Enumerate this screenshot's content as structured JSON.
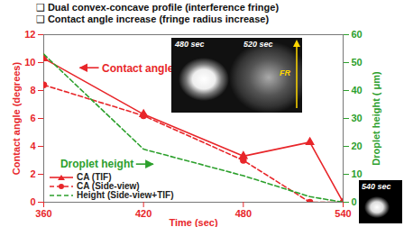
{
  "chart_data": {
    "type": "line",
    "title": "❑ Dual convex-concave profile (interference fringe)",
    "subtitle": "❑ Contact angle increase (fringe radius increase)",
    "x": [
      360,
      420,
      480,
      520,
      540
    ],
    "xlabel": "Time (sec)",
    "ylabel": "Contact angle (degrees)",
    "y2label": "Droplet height ( μm)",
    "xlim": [
      360,
      540
    ],
    "xticks": [
      360,
      420,
      480,
      540
    ],
    "ylim": [
      0,
      12
    ],
    "yticks": [
      0,
      2,
      4,
      6,
      8,
      10,
      12
    ],
    "y2lim": [
      0,
      60
    ],
    "y2ticks": [
      0,
      10,
      20,
      30,
      40,
      50,
      60
    ],
    "legend": "lower left",
    "series": [
      {
        "name": "CA (TIF)",
        "color": "#e8262a",
        "marker": "triangle",
        "line_style": "solid",
        "values": [
          10.3,
          6.3,
          3.3,
          4.3,
          0
        ]
      },
      {
        "name": "CA (Side-view)",
        "color": "#e8262a",
        "marker": "circle",
        "line_style": "dashed",
        "values": [
          8.4,
          6.2,
          3.0,
          0,
          0
        ]
      },
      {
        "name": "Height (Side-view+TIF)",
        "color": "#2ca02c",
        "marker": "none",
        "line_style": "dashed",
        "axis": "y2",
        "values": [
          53,
          19,
          9.5,
          2,
          0
        ]
      }
    ],
    "annotations": [
      {
        "text": "Contact angle",
        "x": 395,
        "y": 9.6,
        "color": "#e8262a"
      },
      {
        "text": "Droplet height",
        "x": 370,
        "y": 2.7,
        "color": "#2ca02c"
      }
    ],
    "images": [
      {
        "labels": [
          "480 sec",
          "520 sec"
        ],
        "marker": "FR"
      },
      {
        "labels": [
          "540 sec"
        ]
      }
    ]
  }
}
